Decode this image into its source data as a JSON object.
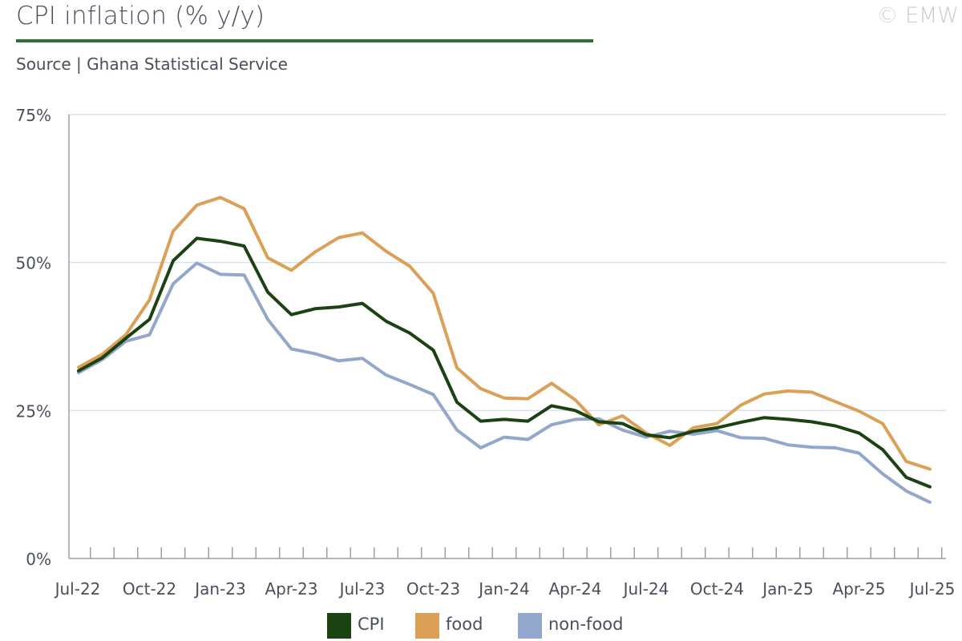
{
  "header": {
    "title": "CPI inflation (% y/y)",
    "copyright": "© EMW",
    "subtitle": "Source | Ghana Statistical Service"
  },
  "colors": {
    "cpi": "#1b4312",
    "food": "#dba055",
    "nonfood": "#93a7cd",
    "grid": "#d6e2ee",
    "axis": "#9aa0ab",
    "text": "#4a4f5c",
    "title_rule": "#2f7034"
  },
  "chart_data": {
    "type": "line",
    "title": "CPI inflation (% y/y)",
    "ylim": [
      0,
      75
    ],
    "yticks": [
      0,
      25,
      50,
      75
    ],
    "ytick_labels": [
      "0%",
      "25%",
      "50%",
      "75%"
    ],
    "xtick_labels": [
      "Jul-22",
      "Oct-22",
      "Jan-23",
      "Apr-23",
      "Jul-23",
      "Oct-23",
      "Jan-24",
      "Apr-24",
      "Jul-24",
      "Oct-24",
      "Jan-25",
      "Apr-25",
      "Jul-25"
    ],
    "grid": true,
    "legend_position": "bottom",
    "x": [
      "Jul-22",
      "Aug-22",
      "Sep-22",
      "Oct-22",
      "Nov-22",
      "Dec-22",
      "Jan-23",
      "Feb-23",
      "Mar-23",
      "Apr-23",
      "May-23",
      "Jun-23",
      "Jul-23",
      "Aug-23",
      "Sep-23",
      "Oct-23",
      "Nov-23",
      "Dec-23",
      "Jan-24",
      "Feb-24",
      "Mar-24",
      "Apr-24",
      "May-24",
      "Jun-24",
      "Jul-24",
      "Aug-24",
      "Sep-24",
      "Oct-24",
      "Nov-24",
      "Dec-24",
      "Jan-25",
      "Feb-25",
      "Mar-25",
      "Apr-25",
      "May-25",
      "Jun-25",
      "Jul-25"
    ],
    "series": [
      {
        "name": "CPI",
        "color": "#1b4312",
        "values": [
          31.7,
          33.9,
          37.2,
          40.4,
          50.3,
          54.1,
          53.6,
          52.8,
          45.0,
          41.2,
          42.2,
          42.5,
          43.1,
          40.1,
          38.1,
          35.2,
          26.4,
          23.2,
          23.5,
          23.2,
          25.8,
          25.0,
          23.1,
          22.8,
          20.9,
          20.4,
          21.5,
          22.1,
          23.0,
          23.8,
          23.5,
          23.1,
          22.4,
          21.2,
          18.4,
          13.7,
          12.1
        ]
      },
      {
        "name": "food",
        "color": "#dba055",
        "values": [
          32.3,
          34.5,
          37.8,
          43.7,
          55.3,
          59.7,
          61.0,
          59.1,
          50.8,
          48.7,
          51.8,
          54.2,
          55.0,
          51.9,
          49.4,
          44.8,
          32.2,
          28.7,
          27.1,
          27.0,
          29.6,
          26.8,
          22.6,
          24.1,
          21.2,
          19.1,
          22.1,
          22.8,
          25.9,
          27.8,
          28.3,
          28.1,
          26.5,
          24.9,
          22.8,
          16.4,
          15.1
        ]
      },
      {
        "name": "non-food",
        "color": "#93a7cd",
        "values": [
          31.4,
          33.6,
          36.7,
          37.8,
          46.4,
          49.9,
          48.0,
          47.9,
          40.4,
          35.4,
          34.6,
          33.4,
          33.8,
          31.0,
          29.4,
          27.7,
          21.7,
          18.7,
          20.5,
          20.1,
          22.6,
          23.5,
          23.6,
          21.7,
          20.5,
          21.5,
          21.0,
          21.6,
          20.4,
          20.3,
          19.2,
          18.8,
          18.7,
          17.8,
          14.3,
          11.4,
          9.5
        ]
      }
    ]
  },
  "legend": [
    {
      "label": "CPI",
      "color": "#1b4312"
    },
    {
      "label": "food",
      "color": "#dba055"
    },
    {
      "label": "non-food",
      "color": "#93a7cd"
    }
  ]
}
